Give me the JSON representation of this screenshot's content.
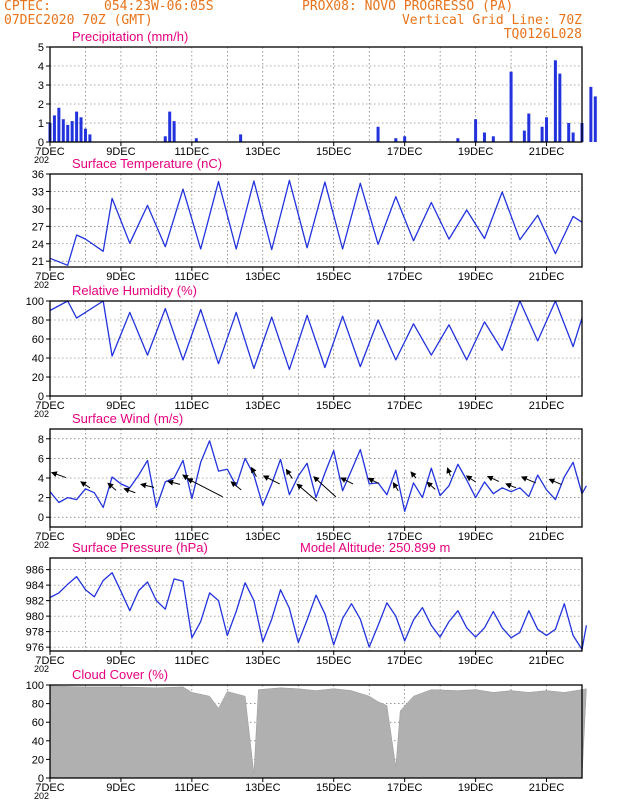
{
  "header": {
    "line1_left": "CPTEC:",
    "coords": "054:23W-06:05S",
    "station": "PROX08: NOVO PROGRESSO (PA)",
    "date": "07DEC2020 70Z (GMT)",
    "grid_note": "Vertical Grid Line: 70Z",
    "model_code": "TQ0126L028"
  },
  "colors": {
    "header": "#e8731a",
    "title": "#e6007e",
    "series": "#2233dd",
    "cloud": "#b0b0b0"
  },
  "x_axis": {
    "start": "2020-12-07",
    "end": "2020-12-22",
    "tick_labels": [
      "7DEC",
      "9DEC",
      "11DEC",
      "13DEC",
      "15DEC",
      "17DEC",
      "19DEC",
      "21DEC"
    ],
    "year_label": "202"
  },
  "chart_data": [
    {
      "type": "bar",
      "title": "Precipitation (mm/h)",
      "ylim": [
        0,
        5
      ],
      "yticks": [
        "0",
        "1",
        "2",
        "3",
        "4",
        "5"
      ],
      "points": [
        [
          "7DEC 00h",
          1.0
        ],
        [
          "7DEC 03h",
          1.4
        ],
        [
          "7DEC 06h",
          1.8
        ],
        [
          "7DEC 09h",
          1.2
        ],
        [
          "7DEC 12h",
          0.9
        ],
        [
          "7DEC 15h",
          1.1
        ],
        [
          "7DEC 18h",
          1.6
        ],
        [
          "7DEC 21h",
          1.3
        ],
        [
          "8DEC 00h",
          0.7
        ],
        [
          "8DEC 03h",
          0.4
        ],
        [
          "10DEC 06h",
          0.3
        ],
        [
          "10DEC 09h",
          1.6
        ],
        [
          "10DEC 12h",
          1.1
        ],
        [
          "11DEC 03h",
          0.2
        ],
        [
          "12DEC 09h",
          0.4
        ],
        [
          "16DEC 06h",
          0.8
        ],
        [
          "16DEC 18h",
          0.2
        ],
        [
          "17DEC 00h",
          0.3
        ],
        [
          "18DEC 12h",
          0.2
        ],
        [
          "19DEC 00h",
          1.2
        ],
        [
          "19DEC 06h",
          0.5
        ],
        [
          "19DEC 12h",
          0.3
        ],
        [
          "20DEC 00h",
          3.7
        ],
        [
          "20DEC 09h",
          0.6
        ],
        [
          "20DEC 12h",
          1.5
        ],
        [
          "20DEC 21h",
          0.8
        ],
        [
          "21DEC 00h",
          1.3
        ],
        [
          "21DEC 06h",
          4.3
        ],
        [
          "21DEC 09h",
          3.6
        ],
        [
          "21DEC 15h",
          1.0
        ],
        [
          "21DEC 18h",
          0.5
        ],
        [
          "22DEC 00h",
          1.0
        ],
        [
          "22DEC 06h",
          2.9
        ],
        [
          "22DEC 09h",
          2.4
        ]
      ]
    },
    {
      "type": "line",
      "title": "Surface Temperature (nC)",
      "ylim": [
        20,
        36
      ],
      "yticks": [
        "21",
        "24",
        "27",
        "30",
        "33",
        "36"
      ],
      "points": [
        [
          "7DEC 00h",
          21.5
        ],
        [
          "7DEC 12h",
          20.3
        ],
        [
          "7DEC 18h",
          25.5
        ],
        [
          "8DEC 00h",
          24.8
        ],
        [
          "8DEC 12h",
          22.7
        ],
        [
          "8DEC 18h",
          31.8
        ],
        [
          "9DEC 06h",
          24.1
        ],
        [
          "9DEC 18h",
          30.6
        ],
        [
          "10DEC 06h",
          23.5
        ],
        [
          "10DEC 18h",
          33.4
        ],
        [
          "11DEC 06h",
          23.1
        ],
        [
          "11DEC 18h",
          34.7
        ],
        [
          "12DEC 06h",
          23.1
        ],
        [
          "12DEC 18h",
          34.8
        ],
        [
          "13DEC 06h",
          23.0
        ],
        [
          "13DEC 18h",
          34.9
        ],
        [
          "14DEC 06h",
          23.3
        ],
        [
          "14DEC 18h",
          34.6
        ],
        [
          "15DEC 06h",
          23.1
        ],
        [
          "15DEC 18h",
          34.4
        ],
        [
          "16DEC 06h",
          23.9
        ],
        [
          "16DEC 18h",
          32.1
        ],
        [
          "17DEC 06h",
          24.5
        ],
        [
          "17DEC 18h",
          31.1
        ],
        [
          "18DEC 06h",
          24.8
        ],
        [
          "18DEC 18h",
          29.8
        ],
        [
          "19DEC 06h",
          24.9
        ],
        [
          "19DEC 18h",
          32.9
        ],
        [
          "20DEC 06h",
          24.7
        ],
        [
          "20DEC 18h",
          28.9
        ],
        [
          "21DEC 06h",
          22.3
        ],
        [
          "21DEC 18h",
          28.7
        ],
        [
          "22DEC 00h",
          27.7
        ]
      ]
    },
    {
      "type": "line",
      "title": "Relative Humidity (%)",
      "ylim": [
        0,
        100
      ],
      "yticks": [
        "0",
        "20",
        "40",
        "60",
        "80",
        "100"
      ],
      "points": [
        [
          "7DEC 00h",
          90
        ],
        [
          "7DEC 12h",
          100
        ],
        [
          "7DEC 18h",
          82
        ],
        [
          "8DEC 12h",
          100
        ],
        [
          "8DEC 18h",
          42
        ],
        [
          "9DEC 06h",
          88
        ],
        [
          "9DEC 18h",
          43
        ],
        [
          "10DEC 06h",
          92
        ],
        [
          "10DEC 18h",
          38
        ],
        [
          "11DEC 06h",
          91
        ],
        [
          "11DEC 18h",
          34
        ],
        [
          "12DEC 06h",
          88
        ],
        [
          "12DEC 18h",
          29
        ],
        [
          "13DEC 06h",
          83
        ],
        [
          "13DEC 18h",
          28
        ],
        [
          "14DEC 06h",
          85
        ],
        [
          "14DEC 18h",
          30
        ],
        [
          "15DEC 06h",
          84
        ],
        [
          "15DEC 18h",
          31
        ],
        [
          "16DEC 06h",
          80
        ],
        [
          "16DEC 18h",
          38
        ],
        [
          "17DEC 06h",
          76
        ],
        [
          "17DEC 18h",
          43
        ],
        [
          "18DEC 06h",
          75
        ],
        [
          "18DEC 18h",
          38
        ],
        [
          "19DEC 06h",
          78
        ],
        [
          "19DEC 18h",
          48
        ],
        [
          "20DEC 06h",
          100
        ],
        [
          "20DEC 18h",
          58
        ],
        [
          "21DEC 06h",
          100
        ],
        [
          "21DEC 18h",
          52
        ],
        [
          "22DEC 00h",
          82
        ]
      ]
    },
    {
      "type": "line",
      "title": "Surface Wind (m/s)",
      "ylim": [
        -1,
        9
      ],
      "yticks": [
        "0",
        "2",
        "4",
        "6",
        "8"
      ],
      "points": [
        [
          "7DEC 00h",
          2.6
        ],
        [
          "7DEC 06h",
          1.5
        ],
        [
          "7DEC 12h",
          2.0
        ],
        [
          "7DEC 18h",
          1.8
        ],
        [
          "8DEC 00h",
          2.9
        ],
        [
          "8DEC 06h",
          2.5
        ],
        [
          "8DEC 12h",
          1.0
        ],
        [
          "8DEC 18h",
          4.1
        ],
        [
          "9DEC 00h",
          3.4
        ],
        [
          "9DEC 06h",
          3.0
        ],
        [
          "9DEC 12h",
          4.3
        ],
        [
          "9DEC 18h",
          5.8
        ],
        [
          "10DEC 00h",
          1.0
        ],
        [
          "10DEC 06h",
          3.6
        ],
        [
          "10DEC 12h",
          4.0
        ],
        [
          "10DEC 18h",
          5.8
        ],
        [
          "11DEC 00h",
          1.9
        ],
        [
          "11DEC 06h",
          5.6
        ],
        [
          "11DEC 12h",
          7.8
        ],
        [
          "11DEC 18h",
          4.7
        ],
        [
          "12DEC 00h",
          4.9
        ],
        [
          "12DEC 06h",
          3.2
        ],
        [
          "12DEC 12h",
          6.0
        ],
        [
          "12DEC 18h",
          4.3
        ],
        [
          "13DEC 00h",
          1.2
        ],
        [
          "13DEC 06h",
          3.4
        ],
        [
          "13DEC 12h",
          5.9
        ],
        [
          "13DEC 18h",
          2.3
        ],
        [
          "14DEC 00h",
          4.2
        ],
        [
          "14DEC 06h",
          5.5
        ],
        [
          "14DEC 12h",
          2.0
        ],
        [
          "14DEC 18h",
          4.5
        ],
        [
          "15DEC 00h",
          6.8
        ],
        [
          "15DEC 06h",
          2.7
        ],
        [
          "15DEC 12h",
          4.8
        ],
        [
          "15DEC 18h",
          6.9
        ],
        [
          "16DEC 00h",
          3.4
        ],
        [
          "16DEC 06h",
          3.5
        ],
        [
          "16DEC 12h",
          2.3
        ],
        [
          "16DEC 18h",
          4.8
        ],
        [
          "17DEC 00h",
          0.6
        ],
        [
          "17DEC 06h",
          3.5
        ],
        [
          "17DEC 12h",
          2.0
        ],
        [
          "17DEC 18h",
          5.0
        ],
        [
          "18DEC 00h",
          2.2
        ],
        [
          "18DEC 06h",
          3.2
        ],
        [
          "18DEC 12h",
          5.4
        ],
        [
          "18DEC 18h",
          3.8
        ],
        [
          "19DEC 00h",
          2.0
        ],
        [
          "19DEC 06h",
          3.6
        ],
        [
          "19DEC 12h",
          2.4
        ],
        [
          "19DEC 18h",
          3.0
        ],
        [
          "20DEC 00h",
          2.6
        ],
        [
          "20DEC 06h",
          3.0
        ],
        [
          "20DEC 12h",
          2.1
        ],
        [
          "20DEC 18h",
          4.3
        ],
        [
          "21DEC 00h",
          2.8
        ],
        [
          "21DEC 06h",
          1.8
        ],
        [
          "21DEC 12h",
          4.1
        ],
        [
          "21DEC 18h",
          5.6
        ],
        [
          "22DEC 00h",
          2.4
        ],
        [
          "22DEC 03h",
          3.2
        ]
      ],
      "wind_vectors": [
        [
          "7DEC 06h",
          4.3,
          14,
          5
        ],
        [
          "8DEC 00h",
          3.3,
          9,
          6
        ],
        [
          "8DEC 18h",
          3.1,
          8,
          7
        ],
        [
          "9DEC 06h",
          2.7,
          11,
          4
        ],
        [
          "9DEC 18h",
          3.2,
          13,
          3
        ],
        [
          "10DEC 12h",
          3.5,
          12,
          3
        ],
        [
          "10DEC 21h",
          4.0,
          9,
          6
        ],
        [
          "11DEC 09h",
          3.0,
          35,
          18
        ],
        [
          "12DEC 06h",
          3.2,
          10,
          8
        ],
        [
          "12DEC 18h",
          4.6,
          5,
          9
        ],
        [
          "13DEC 06h",
          3.8,
          16,
          8
        ],
        [
          "13DEC 18h",
          4.4,
          6,
          9
        ],
        [
          "14DEC 06h",
          2.5,
          20,
          17
        ],
        [
          "14DEC 18h",
          3.1,
          22,
          20
        ],
        [
          "15DEC 09h",
          3.7,
          12,
          6
        ],
        [
          "16DEC 03h",
          3.7,
          10,
          5
        ],
        [
          "16DEC 18h",
          3.1,
          5,
          8
        ],
        [
          "17DEC 06h",
          4.3,
          5,
          6
        ],
        [
          "17DEC 18h",
          3.2,
          8,
          7
        ],
        [
          "18DEC 06h",
          4.6,
          3,
          8
        ],
        [
          "18DEC 21h",
          3.9,
          9,
          6
        ],
        [
          "19DEC 12h",
          3.9,
          11,
          5
        ],
        [
          "20DEC 00h",
          3.2,
          10,
          4
        ],
        [
          "20DEC 12h",
          3.8,
          14,
          6
        ],
        [
          "21DEC 06h",
          3.6,
          12,
          5
        ]
      ]
    },
    {
      "type": "line",
      "title": "Surface Pressure (hPa)",
      "annotation": "Model Altitude: 250.899 m",
      "ylim": [
        975.5,
        987.5
      ],
      "yticks": [
        "976",
        "978",
        "980",
        "982",
        "984",
        "986"
      ],
      "points": [
        [
          "7DEC 00h",
          982.4
        ],
        [
          "7DEC 06h",
          983.0
        ],
        [
          "7DEC 12h",
          984.1
        ],
        [
          "7DEC 18h",
          985.1
        ],
        [
          "8DEC 00h",
          983.4
        ],
        [
          "8DEC 06h",
          982.5
        ],
        [
          "8DEC 12h",
          984.6
        ],
        [
          "8DEC 18h",
          985.6
        ],
        [
          "9DEC 00h",
          983.2
        ],
        [
          "9DEC 06h",
          980.7
        ],
        [
          "9DEC 12h",
          983.3
        ],
        [
          "9DEC 18h",
          984.4
        ],
        [
          "10DEC 00h",
          982.0
        ],
        [
          "10DEC 06h",
          980.9
        ],
        [
          "10DEC 12h",
          984.8
        ],
        [
          "10DEC 18h",
          984.5
        ],
        [
          "11DEC 00h",
          977.2
        ],
        [
          "11DEC 06h",
          979.3
        ],
        [
          "11DEC 12h",
          983.0
        ],
        [
          "11DEC 18h",
          982.0
        ],
        [
          "12DEC 00h",
          977.5
        ],
        [
          "12DEC 06h",
          980.6
        ],
        [
          "12DEC 12h",
          984.3
        ],
        [
          "12DEC 18h",
          982.0
        ],
        [
          "13DEC 00h",
          976.7
        ],
        [
          "13DEC 06h",
          979.6
        ],
        [
          "13DEC 12h",
          983.4
        ],
        [
          "13DEC 18h",
          981.0
        ],
        [
          "14DEC 00h",
          976.6
        ],
        [
          "14DEC 06h",
          979.5
        ],
        [
          "14DEC 12h",
          982.7
        ],
        [
          "14DEC 18h",
          980.3
        ],
        [
          "15DEC 00h",
          976.3
        ],
        [
          "15DEC 06h",
          979.7
        ],
        [
          "15DEC 12h",
          981.6
        ],
        [
          "15DEC 18h",
          979.6
        ],
        [
          "16DEC 00h",
          976.0
        ],
        [
          "16DEC 06h",
          978.8
        ],
        [
          "16DEC 12h",
          981.7
        ],
        [
          "16DEC 18h",
          980.0
        ],
        [
          "17DEC 00h",
          976.8
        ],
        [
          "17DEC 06h",
          979.5
        ],
        [
          "17DEC 12h",
          981.1
        ],
        [
          "17DEC 18h",
          978.8
        ],
        [
          "18DEC 00h",
          977.3
        ],
        [
          "18DEC 06h",
          979.3
        ],
        [
          "18DEC 12h",
          980.7
        ],
        [
          "18DEC 18h",
          978.5
        ],
        [
          "19DEC 00h",
          977.3
        ],
        [
          "19DEC 06h",
          978.5
        ],
        [
          "19DEC 12h",
          980.6
        ],
        [
          "19DEC 18h",
          978.5
        ],
        [
          "20DEC 00h",
          977.2
        ],
        [
          "20DEC 06h",
          977.9
        ],
        [
          "20DEC 12h",
          980.7
        ],
        [
          "20DEC 18h",
          978.3
        ],
        [
          "21DEC 00h",
          977.5
        ],
        [
          "21DEC 06h",
          978.3
        ],
        [
          "21DEC 12h",
          981.6
        ],
        [
          "21DEC 18h",
          977.5
        ],
        [
          "22DEC 00h",
          975.7
        ],
        [
          "22DEC 03h",
          978.8
        ]
      ]
    },
    {
      "type": "area",
      "title": "Cloud Cover (%)",
      "ylim": [
        0,
        100
      ],
      "yticks": [
        "0",
        "20",
        "40",
        "60",
        "80",
        "100"
      ],
      "points": [
        [
          "7DEC 00h",
          99
        ],
        [
          "8DEC 00h",
          98
        ],
        [
          "9DEC 00h",
          98
        ],
        [
          "10DEC 00h",
          97
        ],
        [
          "10DEC 18h",
          98
        ],
        [
          "11DEC 00h",
          92
        ],
        [
          "11DEC 12h",
          88
        ],
        [
          "11DEC 18h",
          75
        ],
        [
          "12DEC 00h",
          93
        ],
        [
          "12DEC 12h",
          88
        ],
        [
          "12DEC 18h",
          5
        ],
        [
          "12DEC 21h",
          95
        ],
        [
          "13DEC 12h",
          97
        ],
        [
          "14DEC 00h",
          96
        ],
        [
          "14DEC 12h",
          94
        ],
        [
          "15DEC 00h",
          96
        ],
        [
          "15DEC 12h",
          94
        ],
        [
          "16DEC 00h",
          88
        ],
        [
          "16DEC 06h",
          82
        ],
        [
          "16DEC 12h",
          78
        ],
        [
          "16DEC 18h",
          12
        ],
        [
          "16DEC 21h",
          72
        ],
        [
          "17DEC 06h",
          88
        ],
        [
          "17DEC 18h",
          95
        ],
        [
          "18DEC 12h",
          94
        ],
        [
          "19DEC 00h",
          95
        ],
        [
          "19DEC 12h",
          92
        ],
        [
          "20DEC 00h",
          94
        ],
        [
          "20DEC 12h",
          92
        ],
        [
          "21DEC 00h",
          94
        ],
        [
          "21DEC 12h",
          92
        ],
        [
          "22DEC 00h",
          95
        ],
        [
          "22DEC 03h",
          96
        ]
      ]
    }
  ]
}
